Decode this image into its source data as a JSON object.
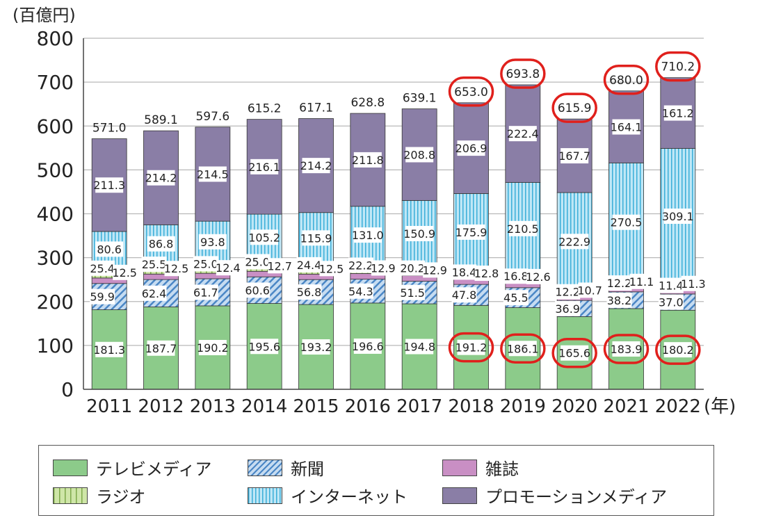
{
  "chart_data": {
    "type": "bar",
    "stacked": true,
    "unit_label": "(百億円)",
    "x_suffix": "(年)",
    "ylim": [
      0,
      800
    ],
    "yticks": [
      0,
      100,
      200,
      300,
      400,
      500,
      600,
      700,
      800
    ],
    "grid": true,
    "categories": [
      "2011",
      "2012",
      "2013",
      "2014",
      "2015",
      "2016",
      "2017",
      "2018",
      "2019",
      "2020",
      "2021",
      "2022"
    ],
    "series": [
      {
        "key": "tv",
        "name": "テレビメディア",
        "color": "#8ccb8a",
        "values": [
          181.3,
          187.7,
          190.2,
          195.6,
          193.2,
          196.6,
          194.8,
          191.2,
          186.1,
          165.6,
          183.9,
          180.2
        ]
      },
      {
        "key": "news",
        "name": "新聞",
        "color": "#4a86c5",
        "values": [
          59.9,
          62.4,
          61.7,
          60.6,
          56.8,
          54.3,
          51.5,
          47.8,
          45.5,
          36.9,
          38.2,
          37.0
        ]
      },
      {
        "key": "mag",
        "name": "雑誌",
        "color": "#c98fc4",
        "values": [
          12.5,
          12.5,
          12.4,
          12.7,
          12.5,
          12.9,
          12.9,
          12.8,
          12.6,
          10.7,
          11.1,
          11.3
        ]
      },
      {
        "key": "radio",
        "name": "ラジオ",
        "color": "#9cc86a",
        "values": [
          25.4,
          25.5,
          25.0,
          25.0,
          24.4,
          22.2,
          20.2,
          18.4,
          16.8,
          12.2,
          12.2,
          11.4
        ]
      },
      {
        "key": "net",
        "name": "インターネット",
        "color": "#3aaed8",
        "values": [
          80.6,
          86.8,
          93.8,
          105.2,
          115.9,
          131.0,
          150.9,
          175.9,
          210.5,
          222.9,
          270.5,
          309.1
        ]
      },
      {
        "key": "promo",
        "name": "プロモーションメディア",
        "color": "#8a7ea6",
        "values": [
          211.3,
          214.2,
          214.5,
          216.1,
          214.2,
          211.8,
          208.8,
          206.9,
          222.4,
          167.7,
          164.1,
          161.2
        ]
      }
    ],
    "totals": [
      "571.0",
      "589.1",
      "597.6",
      "615.2",
      "617.1",
      "628.8",
      "639.1",
      "653.0",
      "693.8",
      "615.9",
      "680.0",
      "710.2"
    ],
    "circled_totals": [
      "2018",
      "2019",
      "2020",
      "2021",
      "2022"
    ],
    "circled_tv": [
      "2018",
      "2019",
      "2020",
      "2021",
      "2022"
    ]
  },
  "legend": {
    "tv": "テレビメディア",
    "news": "新聞",
    "mag": "雑誌",
    "radio": "ラジオ",
    "net": "インターネット",
    "promo": "プロモーションメディア"
  }
}
